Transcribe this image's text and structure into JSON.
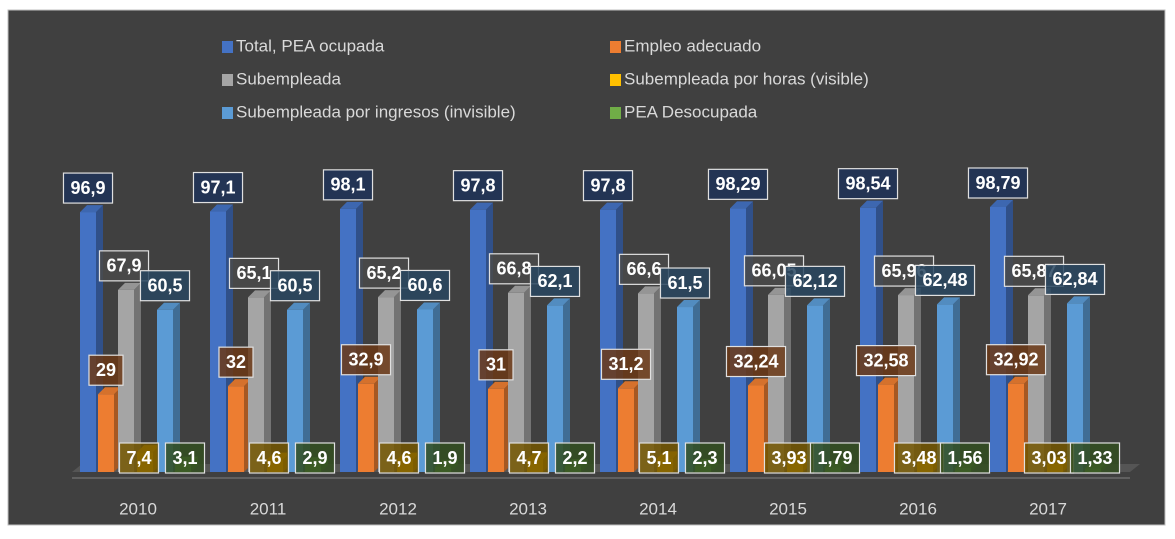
{
  "chart_data": {
    "type": "bar3d",
    "categories": [
      "2010",
      "2011",
      "2012",
      "2013",
      "2014",
      "2015",
      "2016",
      "2017"
    ],
    "legend": "top",
    "series": [
      {
        "name": "Total, PEA ocupada",
        "color": "#4472c4",
        "values": [
          96.9,
          97.1,
          98.1,
          97.8,
          97.8,
          98.29,
          98.54,
          98.79
        ],
        "value_labels": [
          "96,9",
          "97,1",
          "98,1",
          "97,8",
          "97,8",
          "98,29",
          "98,54",
          "98,79"
        ]
      },
      {
        "name": "Empleo adecuado",
        "color": "#ed7d31",
        "values": [
          29,
          32,
          32.9,
          31,
          31.2,
          32.24,
          32.58,
          32.92
        ],
        "value_labels": [
          "29",
          "32",
          "32,9",
          "31",
          "31,2",
          "32,24",
          "32,58",
          "32,92"
        ]
      },
      {
        "name": "Subempleada",
        "color": "#a5a5a5",
        "values": [
          67.9,
          65.1,
          65.2,
          66.8,
          66.6,
          66.05,
          65.96,
          65.87
        ],
        "value_labels": [
          "67,9",
          "65,1",
          "65,2",
          "66,8",
          "66,6",
          "66,05",
          "65,96",
          "65,87"
        ]
      },
      {
        "name": "Subempleada por horas (visible)",
        "color": "#ffc000",
        "values": [
          7.4,
          4.6,
          4.6,
          4.7,
          5.1,
          3.93,
          3.48,
          3.03
        ],
        "value_labels": [
          "7,4",
          "4,6",
          "4,6",
          "4,7",
          "5,1",
          "3,93",
          "3,48",
          "3,03"
        ]
      },
      {
        "name": "Subempleada por ingresos (invisible)",
        "color": "#5b9bd5",
        "values": [
          60.5,
          60.5,
          60.6,
          62.1,
          61.5,
          62.12,
          62.48,
          62.84
        ],
        "value_labels": [
          "60,5",
          "60,5",
          "60,6",
          "62,1",
          "61,5",
          "62,12",
          "62,48",
          "62,84"
        ]
      },
      {
        "name": "PEA Desocupada",
        "color": "#70ad47",
        "values": [
          3.1,
          2.9,
          1.9,
          2.2,
          2.3,
          1.79,
          1.56,
          1.33
        ],
        "value_labels": [
          "3,1",
          "2,9",
          "1,9",
          "2,2",
          "2,3",
          "1,79",
          "1,56",
          "1,33"
        ]
      }
    ]
  }
}
